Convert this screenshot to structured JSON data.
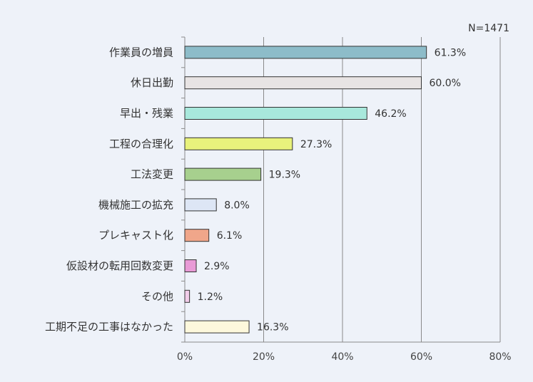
{
  "chart_data": {
    "type": "bar",
    "orientation": "horizontal",
    "title": "",
    "xlabel": "",
    "ylabel": "",
    "sample_size_label": "N=1471",
    "xlim": [
      0,
      80
    ],
    "x_ticks": [
      "0%",
      "20%",
      "40%",
      "60%",
      "80%"
    ],
    "grid": "vertical",
    "categories": [
      "作業員の増員",
      "休日出勤",
      "早出・残業",
      "工程の合理化",
      "工法変更",
      "機械施工の拡充",
      "プレキャスト化",
      "仮設材の転用回数変更",
      "その他",
      "工期不足の工事はなかった"
    ],
    "values": [
      61.3,
      60.0,
      46.2,
      27.3,
      19.3,
      8.0,
      6.1,
      2.9,
      1.2,
      16.3
    ],
    "value_labels": [
      "61.3%",
      "60.0%",
      "46.2%",
      "27.3%",
      "19.3%",
      "8.0%",
      "6.1%",
      "2.9%",
      "1.2%",
      "16.3%"
    ],
    "colors": [
      "#8dbcc9",
      "#e8e4e4",
      "#a8e8dc",
      "#e8f27c",
      "#a7d08e",
      "#dde6f5",
      "#f0a68a",
      "#e89ad6",
      "#f2cdea",
      "#fdf8dc"
    ]
  }
}
